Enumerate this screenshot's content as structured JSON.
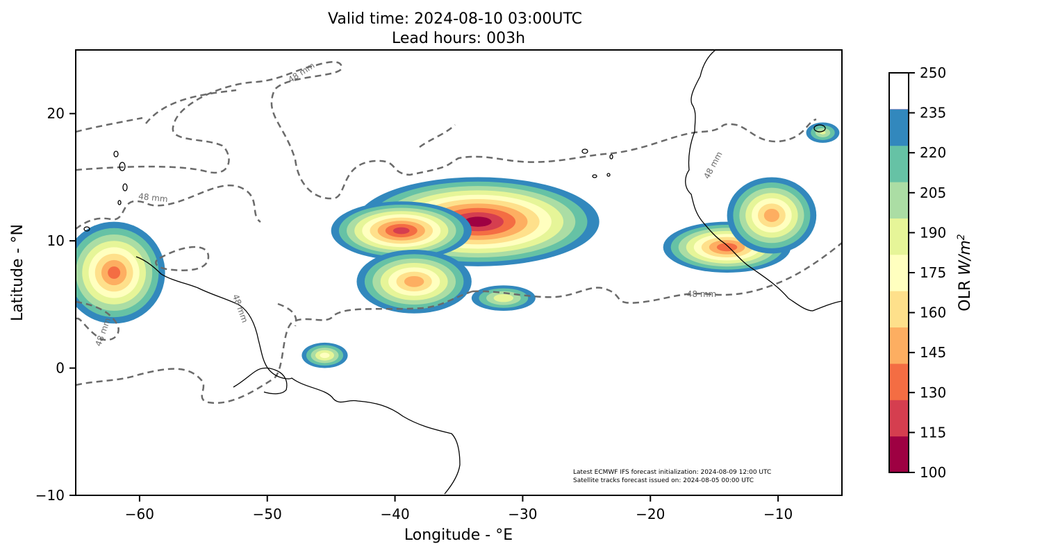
{
  "chart_data": {
    "type": "map",
    "title_line1": "Valid time: 2024-08-10 03:00UTC",
    "title_line2": "Lead hours: 003h",
    "xlabel": "Longitude - °E",
    "ylabel": "Latitude - °N",
    "xlim": [
      -65,
      -5
    ],
    "ylim": [
      -10,
      25
    ],
    "x_ticks": [
      -60,
      -50,
      -40,
      -30,
      -20,
      -10
    ],
    "x_tick_labels": [
      "−60",
      "−50",
      "−40",
      "−30",
      "−20",
      "−10"
    ],
    "y_ticks": [
      -10,
      0,
      10,
      20
    ],
    "y_tick_labels": [
      "−10",
      "0",
      "10",
      "20"
    ],
    "colorbar": {
      "label": "OLR W/m²",
      "label_text": "OLR ",
      "label_var": "W/m",
      "label_sup": "2",
      "levels": [
        100,
        115,
        130,
        145,
        160,
        175,
        190,
        205,
        220,
        235,
        250
      ],
      "tick_labels": [
        "100",
        "115",
        "130",
        "145",
        "160",
        "175",
        "190",
        "205",
        "220",
        "235",
        "250"
      ],
      "colors": [
        "#9e0142",
        "#d53e4f",
        "#f46d43",
        "#fdae61",
        "#fee08b",
        "#ffffbf",
        "#e6f598",
        "#abdda4",
        "#66c2a5",
        "#3288bd",
        "#5e4fa2"
      ]
    },
    "contour_label": "48 mm",
    "notes": [
      "Latest ECMWF IFS forecast initialization: 2024-08-09 12:00 UTC",
      "Satellite tracks forecast issued on: 2024-08-05 00:00 UTC"
    ],
    "olr_systems": [
      {
        "lon": -33.5,
        "lat": 11.5,
        "rx": 9.5,
        "ry": 3.5,
        "min": 110
      },
      {
        "lon": -39.5,
        "lat": 10.8,
        "rx": 5.5,
        "ry": 2.3,
        "min": 125
      },
      {
        "lon": -38.5,
        "lat": 6.8,
        "rx": 4.5,
        "ry": 2.5,
        "min": 150
      },
      {
        "lon": -31.5,
        "lat": 5.5,
        "rx": 2.5,
        "ry": 1.0,
        "min": 190
      },
      {
        "lon": -45.5,
        "lat": 1.0,
        "rx": 1.8,
        "ry": 1.0,
        "min": 180
      },
      {
        "lon": -62.0,
        "lat": 7.5,
        "rx": 4.0,
        "ry": 4.0,
        "min": 140
      },
      {
        "lon": -14.0,
        "lat": 9.5,
        "rx": 5.0,
        "ry": 2.0,
        "min": 135
      },
      {
        "lon": -10.5,
        "lat": 12.0,
        "rx": 3.5,
        "ry": 3.0,
        "min": 150
      },
      {
        "lon": -6.5,
        "lat": 18.5,
        "rx": 1.3,
        "ry": 0.8,
        "min": 200
      }
    ]
  }
}
